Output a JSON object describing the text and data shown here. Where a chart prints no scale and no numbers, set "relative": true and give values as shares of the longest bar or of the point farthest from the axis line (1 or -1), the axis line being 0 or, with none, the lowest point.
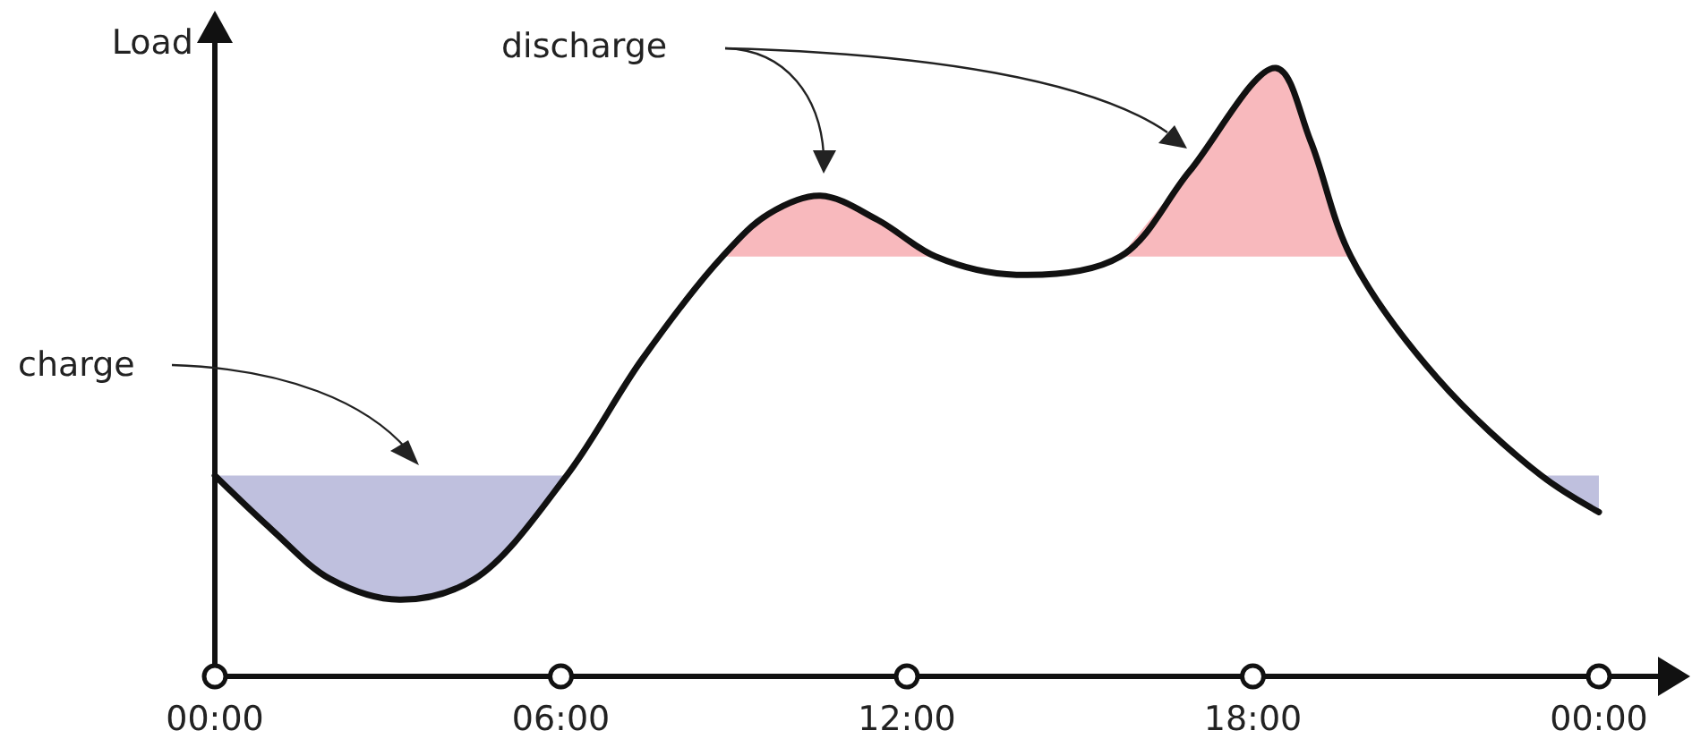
{
  "chart_data": {
    "type": "line",
    "relative": true,
    "ylabel": "Load",
    "xlim": [
      0,
      24
    ],
    "xticks": [
      {
        "value": 0,
        "label": "00:00"
      },
      {
        "value": 6,
        "label": "06:00"
      },
      {
        "value": 12,
        "label": "12:00"
      },
      {
        "value": 18,
        "label": "18:00"
      },
      {
        "value": 24,
        "label": "00:00"
      }
    ],
    "series": [
      {
        "type": "area",
        "color": "#bfc0de",
        "x": [
          0,
          1,
          2,
          3.2,
          4.5,
          6.1
        ],
        "values": [
          0.33,
          0.24,
          0.16,
          0.126,
          0.16,
          0.33
        ]
      },
      {
        "type": "area",
        "color": "#f8b9bd",
        "x": [
          8.8,
          9.6,
          10.5,
          11.5,
          12.5
        ],
        "values": [
          0.69,
          0.76,
          0.79,
          0.75,
          0.69
        ]
      },
      {
        "type": "area",
        "color": "#f8b9bd",
        "x": [
          15.7,
          16.9,
          18.4,
          19.0,
          19.7
        ],
        "values": [
          0.69,
          0.83,
          1.0,
          0.88,
          0.69
        ]
      },
      {
        "type": "area",
        "color": "#bfc0de",
        "x": [
          23.0,
          24,
          24
        ],
        "values": [
          0.33,
          0.27,
          0.33
        ]
      },
      {
        "type": "line",
        "color": "#111111",
        "x": [
          0,
          1,
          2,
          3.2,
          4.5,
          6.1,
          7.4,
          8.8,
          9.6,
          10.5,
          11.5,
          12.5,
          13.9,
          15.7,
          16.9,
          18.4,
          19.0,
          19.7,
          21.2,
          23.0,
          24
        ],
        "values": [
          0.33,
          0.24,
          0.16,
          0.126,
          0.16,
          0.33,
          0.52,
          0.69,
          0.76,
          0.79,
          0.75,
          0.69,
          0.66,
          0.69,
          0.83,
          1.0,
          0.88,
          0.69,
          0.49,
          0.33,
          0.27
        ]
      }
    ],
    "annotations": [
      "charge",
      "discharge"
    ],
    "grid": false,
    "marker": "none",
    "line_style": "solid"
  }
}
